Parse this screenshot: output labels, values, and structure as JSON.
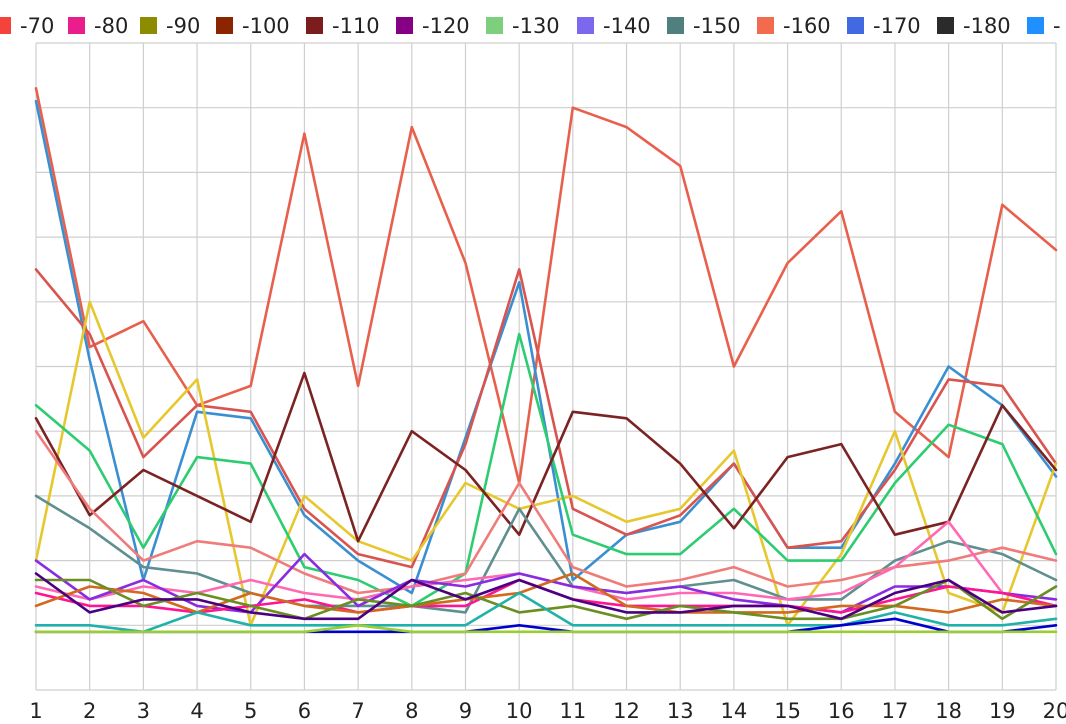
{
  "chart_data": {
    "type": "line",
    "title": "",
    "xlabel": "",
    "ylabel": "",
    "x": [
      1,
      2,
      3,
      4,
      5,
      6,
      7,
      8,
      9,
      10,
      11,
      12,
      13,
      14,
      15,
      16,
      17,
      18,
      19,
      20
    ],
    "x_tick_labels": [
      "1",
      "2",
      "3",
      "4",
      "5",
      "6",
      "7",
      "8",
      "9",
      "10",
      "11",
      "12",
      "13",
      "14",
      "15",
      "16",
      "17",
      "18",
      "19",
      "20"
    ],
    "xlim": [
      1,
      20
    ],
    "ylim": [
      -10,
      90
    ],
    "grid": true,
    "legend_position": "top",
    "series": [
      {
        "name": "",
        "color": "#e8604c",
        "values": [
          83,
          43,
          47,
          34,
          37,
          76,
          37,
          77,
          56,
          22,
          80,
          77,
          71,
          40,
          56,
          64,
          33,
          26,
          65,
          58
        ]
      },
      {
        "name": "",
        "color": "#3a8fd1",
        "values": [
          81,
          41,
          7,
          33,
          32,
          17,
          10,
          5,
          29,
          53,
          7,
          14,
          16,
          25,
          12,
          12,
          25,
          40,
          34,
          23
        ]
      },
      {
        "name": "",
        "color": "#d9534f",
        "values": [
          55,
          45,
          26,
          34,
          33,
          18,
          11,
          9,
          28,
          55,
          18,
          14,
          17,
          25,
          12,
          13,
          24,
          38,
          37,
          25
        ]
      },
      {
        "name": "",
        "color": "#e6c82e",
        "values": [
          10,
          50,
          29,
          38,
          0,
          20,
          13,
          10,
          22,
          18,
          20,
          16,
          18,
          27,
          0,
          11,
          30,
          5,
          2,
          25
        ]
      },
      {
        "name": "",
        "color": "#2ecc71",
        "values": [
          34,
          27,
          12,
          26,
          25,
          9,
          7,
          3,
          8,
          45,
          14,
          11,
          11,
          18,
          10,
          10,
          22,
          31,
          28,
          11
        ]
      },
      {
        "name": "",
        "color": "#7b2323",
        "values": [
          32,
          17,
          24,
          20,
          16,
          39,
          13,
          30,
          24,
          14,
          33,
          32,
          25,
          15,
          26,
          28,
          14,
          16,
          34,
          24
        ]
      },
      {
        "name": "",
        "color": "#5f8f8f",
        "values": [
          20,
          15,
          9,
          8,
          5,
          3,
          3,
          3,
          2,
          18,
          6,
          5,
          6,
          7,
          4,
          4,
          10,
          13,
          11,
          7
        ]
      },
      {
        "name": "",
        "color": "#ef7b7b",
        "values": [
          30,
          18,
          10,
          13,
          12,
          8,
          5,
          6,
          8,
          22,
          9,
          6,
          7,
          9,
          6,
          7,
          9,
          10,
          12,
          10
        ]
      },
      {
        "name": "",
        "color": "#ff69b4",
        "values": [
          6,
          4,
          6,
          5,
          7,
          5,
          4,
          6,
          7,
          8,
          6,
          4,
          5,
          5,
          4,
          5,
          9,
          16,
          5,
          3
        ]
      },
      {
        "name": "",
        "color": "#8a2be2",
        "values": [
          10,
          4,
          7,
          3,
          2,
          11,
          3,
          7,
          6,
          8,
          6,
          5,
          6,
          4,
          3,
          2,
          6,
          6,
          5,
          4
        ]
      },
      {
        "name": "",
        "color": "#ff1493",
        "values": [
          5,
          3,
          3,
          2,
          3,
          4,
          2,
          3,
          3,
          7,
          4,
          3,
          3,
          3,
          3,
          2,
          4,
          6,
          5,
          3
        ]
      },
      {
        "name": "",
        "color": "#d2691e",
        "values": [
          3,
          6,
          5,
          2,
          5,
          3,
          2,
          3,
          4,
          5,
          8,
          3,
          2,
          2,
          2,
          3,
          3,
          2,
          4,
          3
        ]
      },
      {
        "name": "",
        "color": "#6b8e23",
        "values": [
          7,
          7,
          3,
          5,
          3,
          1,
          4,
          3,
          5,
          2,
          3,
          1,
          3,
          2,
          1,
          1,
          3,
          7,
          1,
          6
        ]
      },
      {
        "name": "",
        "color": "#4b0082",
        "values": [
          8,
          2,
          4,
          4,
          2,
          1,
          1,
          7,
          4,
          7,
          4,
          2,
          2,
          3,
          3,
          1,
          5,
          7,
          2,
          3
        ]
      },
      {
        "name": "",
        "color": "#20b2aa",
        "values": [
          0,
          0,
          -1,
          2,
          0,
          0,
          0,
          0,
          0,
          5,
          0,
          0,
          0,
          0,
          0,
          0,
          2,
          0,
          0,
          1
        ]
      },
      {
        "name": "",
        "color": "#0000cd",
        "values": [
          -1,
          -1,
          -1,
          -1,
          -1,
          -1,
          -1,
          -1,
          -1,
          0,
          -1,
          -1,
          -1,
          -1,
          -1,
          0,
          1,
          -1,
          -1,
          0
        ]
      },
      {
        "name": "",
        "color": "#9acd32",
        "values": [
          -1,
          -1,
          -1,
          -1,
          -1,
          -1,
          0,
          -1,
          -1,
          -1,
          -1,
          -1,
          -1,
          -1,
          -1,
          -1,
          -1,
          -1,
          -1,
          -1
        ]
      }
    ],
    "legend": [
      {
        "label": "-70",
        "color": "#f4433b"
      },
      {
        "label": "-80",
        "color": "#e91e8c"
      },
      {
        "label": "-90",
        "color": "#8d8c00"
      },
      {
        "label": "-100",
        "color": "#8b2500"
      },
      {
        "label": "-110",
        "color": "#7b1d1d"
      },
      {
        "label": "-120",
        "color": "#850085"
      },
      {
        "label": "-130",
        "color": "#7ccf7c"
      },
      {
        "label": "-140",
        "color": "#7b68ee"
      },
      {
        "label": "-150",
        "color": "#4f7f7f"
      },
      {
        "label": "-160",
        "color": "#f26b4f"
      },
      {
        "label": "-170",
        "color": "#4169e1"
      },
      {
        "label": "-180",
        "color": "#2b2b2b"
      },
      {
        "label": "-",
        "color": "#1e90ff"
      }
    ]
  }
}
